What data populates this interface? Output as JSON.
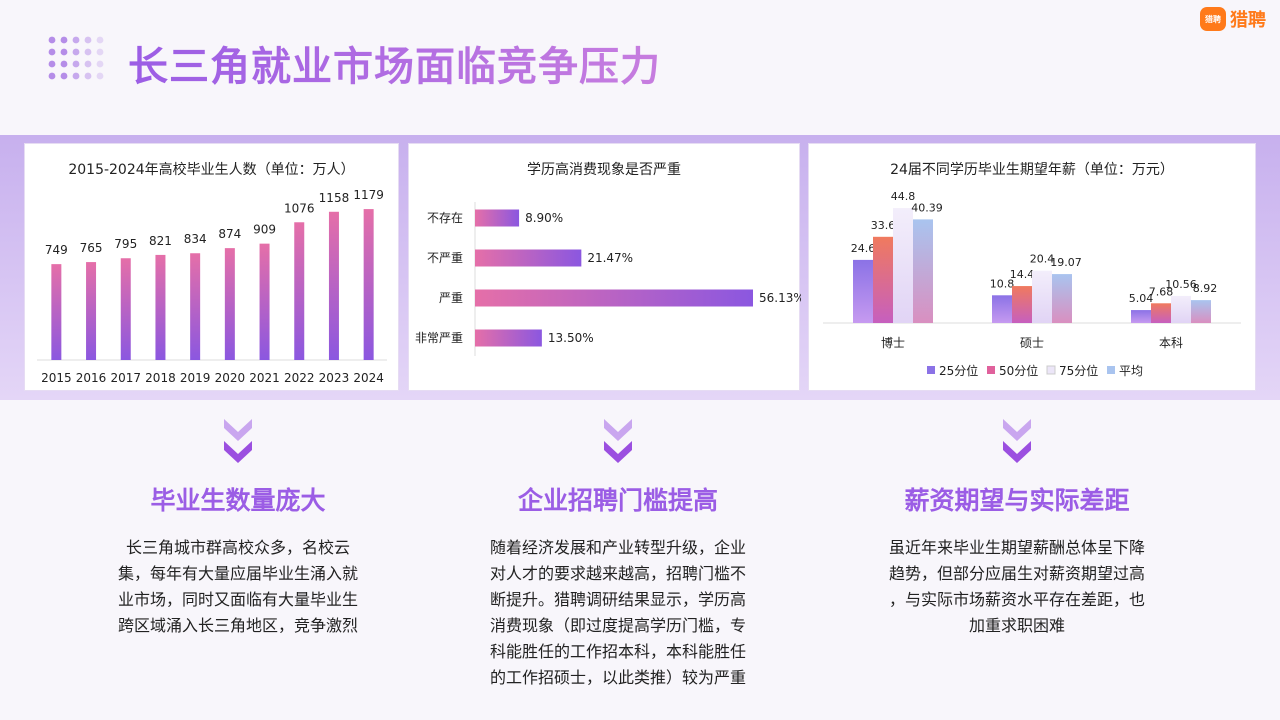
{
  "page": {
    "title": "长三角就业市场面临竞争压力",
    "logo_mark": "猎聘",
    "logo_text": "猎聘"
  },
  "chart_data": [
    {
      "type": "bar",
      "title": "2015-2024年高校毕业生人数（单位：万人）",
      "categories": [
        "2015",
        "2016",
        "2017",
        "2018",
        "2019",
        "2020",
        "2021",
        "2022",
        "2023",
        "2024"
      ],
      "values": [
        749,
        765,
        795,
        821,
        834,
        874,
        909,
        1076,
        1158,
        1179
      ],
      "value_labels": [
        "749",
        "765",
        "795",
        "821",
        "834",
        "874",
        "909",
        "1076",
        "1158",
        "1179"
      ],
      "ylim": [
        0,
        1250
      ]
    },
    {
      "type": "bar",
      "orientation": "horizontal",
      "title": "学历高消费现象是否严重",
      "categories": [
        "不存在",
        "不严重",
        "严重",
        "非常严重"
      ],
      "values": [
        8.9,
        21.47,
        56.13,
        13.5
      ],
      "value_labels": [
        "8.90%",
        "21.47%",
        "56.13%",
        "13.50%"
      ],
      "xlim": [
        0,
        60
      ]
    },
    {
      "type": "bar",
      "title": "24届不同学历毕业生期望年薪（单位：万元）",
      "categories": [
        "博士",
        "硕士",
        "本科"
      ],
      "legend_position": "bottom",
      "ylim": [
        0,
        46
      ],
      "series": [
        {
          "name": "25分位",
          "values": [
            24.6,
            10.8,
            5.04
          ],
          "labels": [
            "24.6",
            "10.8",
            "5.04"
          ]
        },
        {
          "name": "50分位",
          "values": [
            33.6,
            14.4,
            7.68
          ],
          "labels": [
            "33.6",
            "14.4",
            "7.68"
          ]
        },
        {
          "name": "75分位",
          "values": [
            44.8,
            20.4,
            10.56
          ],
          "labels": [
            "44.8",
            "20.4",
            "10.56"
          ]
        },
        {
          "name": "平均",
          "values": [
            40.39,
            19.07,
            8.92
          ],
          "labels": [
            "40.39",
            "19.07",
            "8.92"
          ]
        }
      ]
    }
  ],
  "sections": [
    {
      "heading": "毕业生数量庞大",
      "lines": [
        "长三角城市群高校众多，名校云",
        "集，每年有大量应届毕业生涌入就",
        "业市场，同时又面临有大量毕业生",
        "跨区域涌入长三角地区，竞争激烈"
      ]
    },
    {
      "heading": "企业招聘门槛提高",
      "lines": [
        "随着经济发展和产业转型升级，企业",
        "对人才的要求越来越高，招聘门槛不",
        "断提升。猎聘调研结果显示，学历高",
        "消费现象（即过度提高学历门槛，专",
        "科能胜任的工作招本科，本科能胜任",
        "的工作招硕士，以此类推）较为严重"
      ]
    },
    {
      "heading": "薪资期望与实际差距",
      "lines": [
        "虽近年来毕业生期望薪酬总体呈下降",
        "趋势，但部分应届生对薪资期望过高",
        "，与实际市场薪资水平存在差距，也",
        "加重求职困难"
      ]
    }
  ],
  "colors": {
    "accent": "#9b5de5",
    "bar_gradient_top": "#e56fa8",
    "bar_gradient_bottom": "#8b57e0",
    "series": [
      "#8b72e6",
      "#e0619c",
      "#ece6f8",
      "#a9c4ef"
    ]
  }
}
